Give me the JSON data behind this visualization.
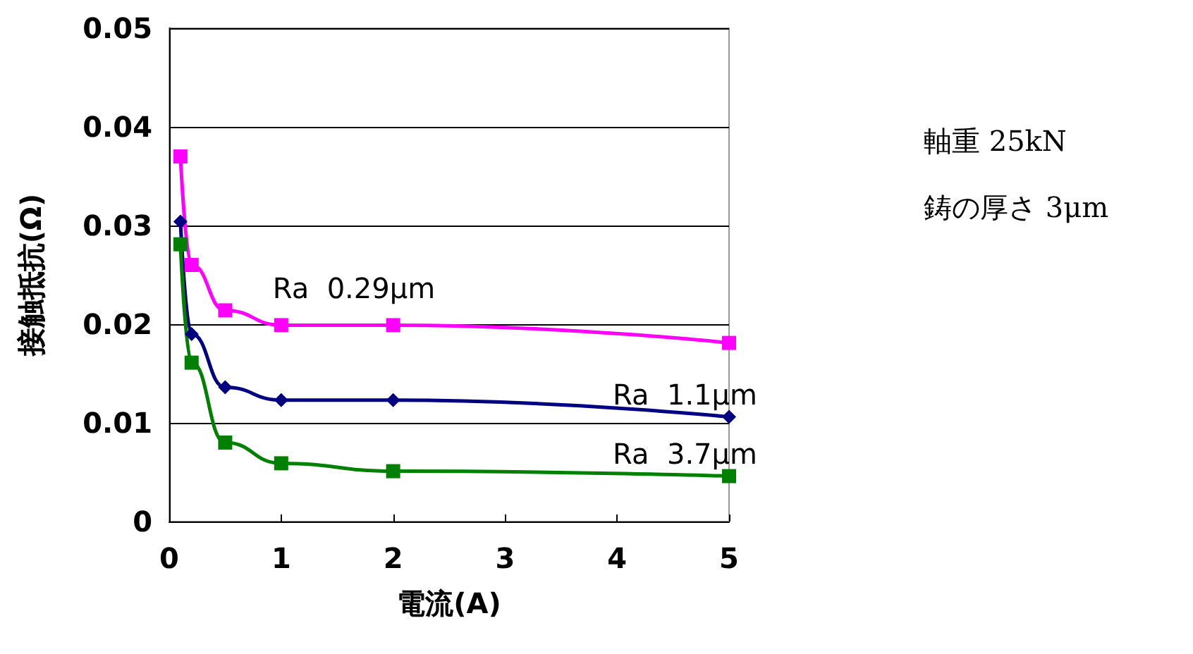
{
  "chart_data": {
    "type": "line",
    "xlabel": "電流(A)",
    "ylabel": "接触抵抗(Ω)",
    "xlim": [
      0,
      5
    ],
    "xticks": [
      0,
      1,
      2,
      3,
      4,
      5
    ],
    "ylim": [
      0,
      0.05
    ],
    "yticks": [
      0,
      0.01,
      0.02,
      0.03,
      0.04,
      0.05
    ],
    "grid": "y",
    "x": [
      0.1,
      0.2,
      0.5,
      1,
      2,
      5
    ],
    "series": [
      {
        "name": "Ra  0.29μm",
        "color": "#ff00ff",
        "marker": "square",
        "values": [
          0.037,
          0.026,
          0.0214,
          0.0199,
          0.0199,
          0.0181
        ]
      },
      {
        "name": "Ra  1.1μm",
        "color": "#000080",
        "marker": "diamond",
        "values": [
          0.0304,
          0.019,
          0.0136,
          0.0123,
          0.0123,
          0.0106
        ]
      },
      {
        "name": "Ra  3.7μm",
        "color": "#008000",
        "marker": "square",
        "values": [
          0.0281,
          0.0161,
          0.008,
          0.0059,
          0.0051,
          0.0046
        ]
      }
    ],
    "annotations": [
      "軸重 25kN",
      "鋳の厚さ 3μm"
    ]
  }
}
